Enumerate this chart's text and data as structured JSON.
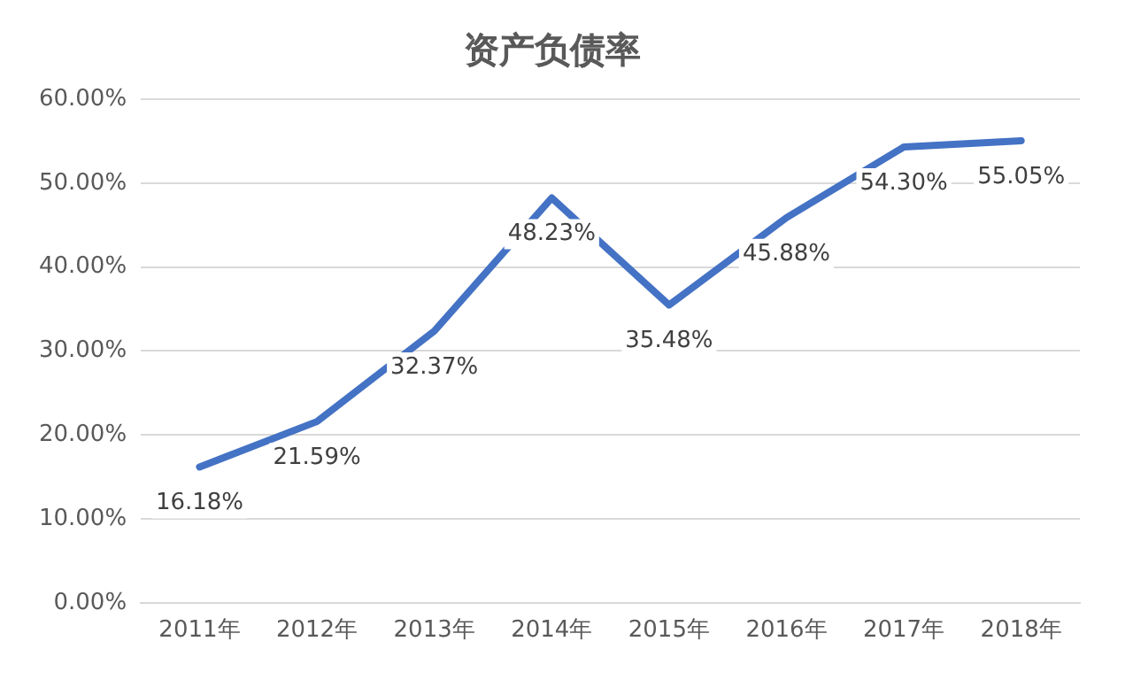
{
  "chart_data": {
    "type": "line",
    "title": "资产负债率",
    "categories": [
      "2011年",
      "2012年",
      "2013年",
      "2014年",
      "2015年",
      "2016年",
      "2017年",
      "2018年"
    ],
    "series": [
      {
        "color": "#4472c4",
        "values": [
          16.18,
          21.59,
          32.37,
          48.23,
          35.48,
          45.88,
          54.3,
          55.05
        ],
        "value_labels": [
          "16.18%",
          "21.59%",
          "32.37%",
          "48.23%",
          "35.48%",
          "45.88%",
          "54.30%",
          "55.05%"
        ]
      }
    ],
    "ylim": [
      0,
      60
    ],
    "yticks": [
      {
        "value": 0,
        "label": "0.00%"
      },
      {
        "value": 10,
        "label": "10.00%"
      },
      {
        "value": 20,
        "label": "20.00%"
      },
      {
        "value": 30,
        "label": "30.00%"
      },
      {
        "value": 40,
        "label": "40.00%"
      },
      {
        "value": 50,
        "label": "50.00%"
      },
      {
        "value": 60,
        "label": "60.00%"
      }
    ],
    "grid": "y",
    "legend": false,
    "marker": "none",
    "line_style": "solid"
  }
}
